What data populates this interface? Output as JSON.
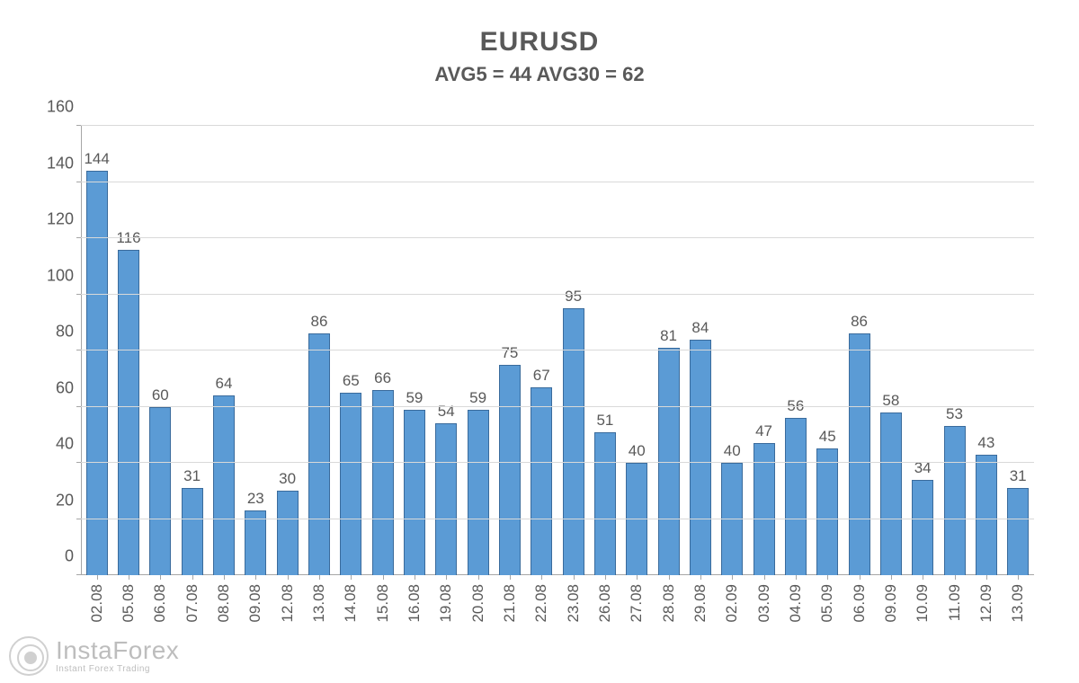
{
  "chart": {
    "type": "bar",
    "title": "EURUSD",
    "subtitle": "AVG5 = 44 AVG30 = 62",
    "title_fontsize": 30,
    "subtitle_fontsize": 22,
    "title_color": "#595959",
    "categories": [
      "02.08",
      "05.08",
      "06.08",
      "07.08",
      "08.08",
      "09.08",
      "12.08",
      "13.08",
      "14.08",
      "15.08",
      "16.08",
      "19.08",
      "20.08",
      "21.08",
      "22.08",
      "23.08",
      "26.08",
      "27.08",
      "28.08",
      "29.08",
      "02.09",
      "03.09",
      "04.09",
      "05.09",
      "06.09",
      "09.09",
      "10.09",
      "11.09",
      "12.09",
      "13.09"
    ],
    "values": [
      144,
      116,
      60,
      31,
      64,
      23,
      30,
      86,
      65,
      66,
      59,
      54,
      59,
      75,
      67,
      95,
      51,
      40,
      81,
      84,
      40,
      47,
      56,
      45,
      86,
      58,
      34,
      53,
      43,
      31
    ],
    "bar_fill": "#5b9bd5",
    "bar_border": "#3a6b9c",
    "bar_width_ratio": 0.68,
    "value_label_fontsize": 17,
    "x_label_fontsize": 17,
    "y_label_fontsize": 18,
    "label_color": "#595959",
    "ylim": [
      0,
      160
    ],
    "ytick_step": 20,
    "grid_color": "#d9d9d9",
    "axis_color": "#a6a6a6",
    "background_color": "#ffffff",
    "x_label_rotation": -90
  },
  "watermark": {
    "main": "InstaForex",
    "sub": "Instant Forex Trading"
  }
}
